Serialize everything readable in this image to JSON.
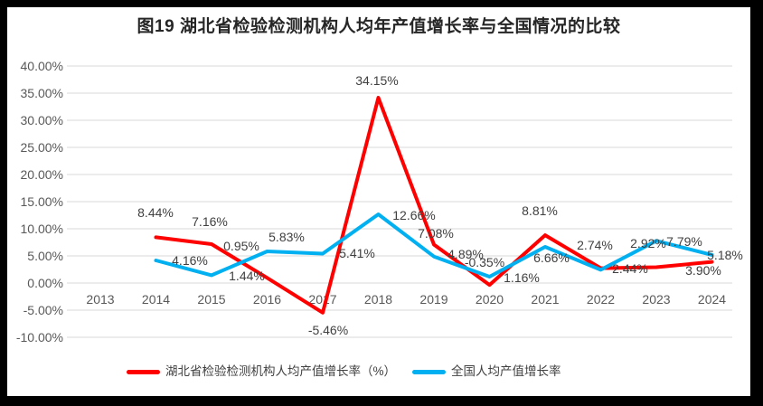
{
  "figure": {
    "title": "图19 湖北省检验检测机构人均年产值增长率与全国情况的比较"
  },
  "chart_data": {
    "type": "line",
    "title": "图19 湖北省检验检测机构人均年产值增长率与全国情况的比较",
    "categories": [
      "2013",
      "2014",
      "2015",
      "2016",
      "2017",
      "2018",
      "2019",
      "2020",
      "2021",
      "2022",
      "2023",
      "2024"
    ],
    "series": [
      {
        "name": "湖北省检验检测机构人均产值增长率（%）",
        "color": "#FF0000",
        "values": [
          null,
          8.44,
          7.16,
          0.95,
          -5.46,
          34.15,
          7.08,
          -0.35,
          8.81,
          2.74,
          2.92,
          3.9
        ]
      },
      {
        "name": "全国人均产值增长率",
        "color": "#00B0F0",
        "values": [
          null,
          4.16,
          1.44,
          5.83,
          5.41,
          12.66,
          4.89,
          1.16,
          6.66,
          2.44,
          7.79,
          5.18
        ]
      }
    ],
    "y_axis": {
      "min": -10,
      "max": 40,
      "step": 5,
      "tick_labels": [
        "40.00%",
        "35.00%",
        "30.00%",
        "25.00%",
        "20.00%",
        "15.00%",
        "10.00%",
        "5.00%",
        "0.00%",
        "-5.00%",
        "-10.00%"
      ]
    },
    "x_axis": {
      "label": ""
    },
    "legend_position": "bottom",
    "grid": true,
    "data_labels": true
  },
  "colors": {
    "series_hubei": "#FF0000",
    "series_national": "#00B0F0",
    "gridline": "#D9D9D9",
    "axis_text": "#595959",
    "data_label_text": "#404040",
    "title_text": "#262626",
    "frame": "#000000",
    "plot_background": "#FFFFFF"
  }
}
